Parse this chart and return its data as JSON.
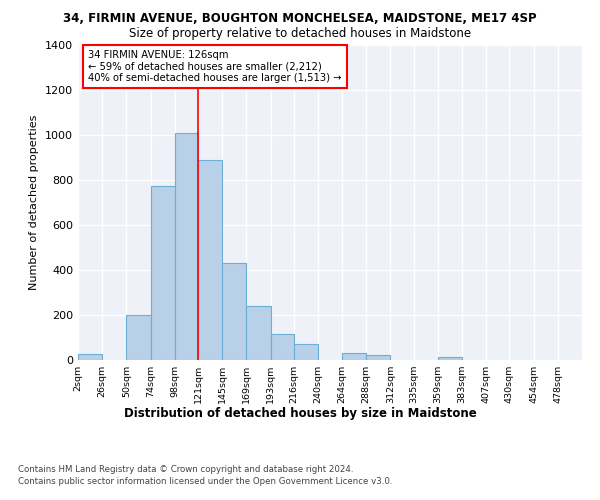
{
  "title1": "34, FIRMIN AVENUE, BOUGHTON MONCHELSEA, MAIDSTONE, ME17 4SP",
  "title2": "Size of property relative to detached houses in Maidstone",
  "xlabel": "Distribution of detached houses by size in Maidstone",
  "ylabel": "Number of detached properties",
  "footer1": "Contains HM Land Registry data © Crown copyright and database right 2024.",
  "footer2": "Contains public sector information licensed under the Open Government Licence v3.0.",
  "bin_labels": [
    "2sqm",
    "26sqm",
    "50sqm",
    "74sqm",
    "98sqm",
    "121sqm",
    "145sqm",
    "169sqm",
    "193sqm",
    "216sqm",
    "240sqm",
    "264sqm",
    "288sqm",
    "312sqm",
    "335sqm",
    "359sqm",
    "383sqm",
    "407sqm",
    "430sqm",
    "454sqm",
    "478sqm"
  ],
  "bin_edges": [
    2,
    26,
    50,
    74,
    98,
    121,
    145,
    169,
    193,
    216,
    240,
    264,
    288,
    312,
    335,
    359,
    383,
    407,
    430,
    454,
    478,
    502
  ],
  "bar_values": [
    25,
    0,
    200,
    775,
    1010,
    890,
    430,
    240,
    115,
    70,
    0,
    30,
    22,
    0,
    0,
    12,
    0,
    0,
    0,
    0,
    0
  ],
  "bar_color": "#b8d0e8",
  "bar_edge_color": "#6baed6",
  "vline_x": 121,
  "vline_color": "red",
  "annotation_title": "34 FIRMIN AVENUE: 126sqm",
  "annotation_line1": "← 59% of detached houses are smaller (2,212)",
  "annotation_line2": "40% of semi-detached houses are larger (1,513) →",
  "ylim": [
    0,
    1400
  ],
  "background_color": "#eef2f8"
}
